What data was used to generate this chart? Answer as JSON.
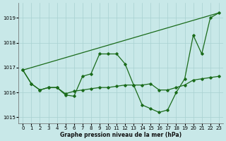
{
  "bg_color": "#c8e8e8",
  "grid_color": "#a8d0d0",
  "line_color": "#1a6b1a",
  "xlim": [
    -0.5,
    23.5
  ],
  "ylim": [
    1014.75,
    1019.6
  ],
  "yticks": [
    1015,
    1016,
    1017,
    1018,
    1019
  ],
  "xtick_labels": [
    "0",
    "1",
    "2",
    "3",
    "4",
    "5",
    "6",
    "7",
    "8",
    "9",
    "10",
    "11",
    "12",
    "13",
    "14",
    "15",
    "16",
    "17",
    "18",
    "19",
    "20",
    "21",
    "22",
    "23"
  ],
  "xlabel": "Graphe pression niveau de la mer (hPa)",
  "line_oscillating": [
    1016.9,
    1016.35,
    1016.1,
    1016.2,
    1016.2,
    1015.9,
    1015.85,
    1016.65,
    1016.75,
    1017.55,
    1017.55,
    1017.55,
    1017.15,
    1016.3,
    1015.5,
    1015.35,
    1015.2,
    1015.3,
    1016.0,
    1016.55,
    1018.3,
    1017.55,
    1019.0,
    1019.2
  ],
  "line_flat": [
    1016.9,
    1016.35,
    1016.1,
    1016.2,
    1016.2,
    1015.95,
    1016.05,
    1016.1,
    1016.15,
    1016.2,
    1016.2,
    1016.25,
    1016.3,
    1016.3,
    1016.3,
    1016.35,
    1016.1,
    1016.1,
    1016.2,
    1016.3,
    1016.5,
    1016.55,
    1016.6,
    1016.65
  ],
  "line_trend_x": [
    0,
    23
  ],
  "line_trend_y": [
    1016.9,
    1019.2
  ]
}
